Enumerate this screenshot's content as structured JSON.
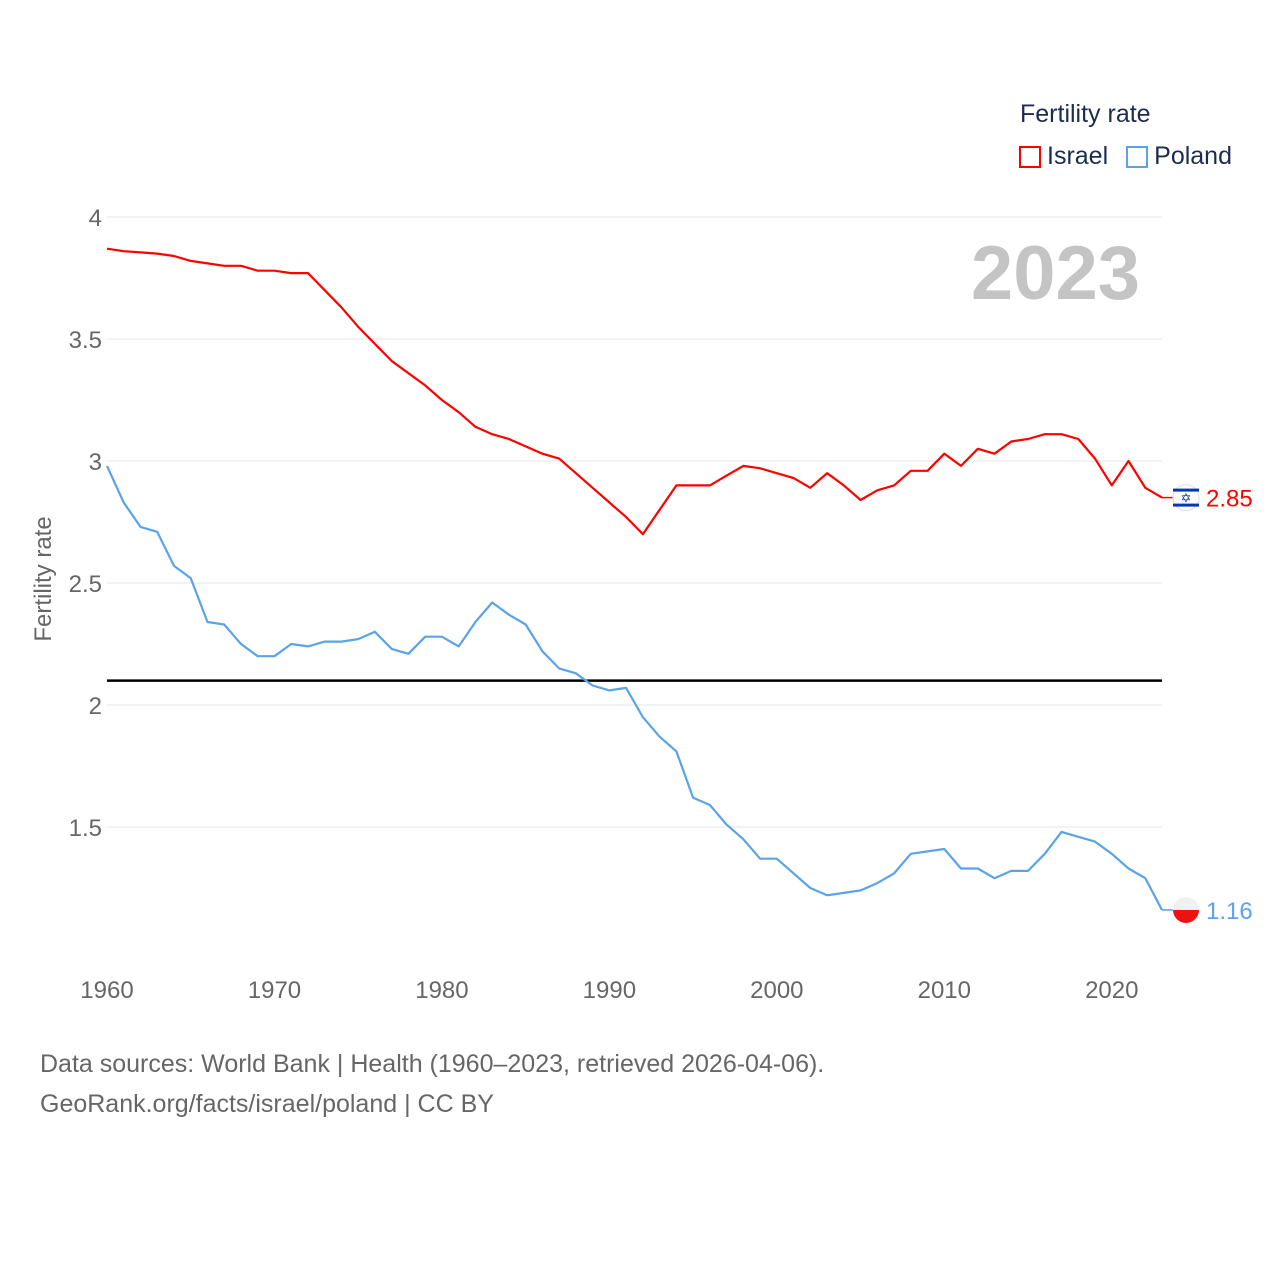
{
  "chart_data": {
    "type": "line",
    "title": "Fertility rate",
    "ylabel": "Fertility rate",
    "xlabel": "",
    "year_label": "2023",
    "xlim": [
      1960,
      2023
    ],
    "ylim": [
      1,
      4
    ],
    "x_ticks": [
      "1960",
      "1970",
      "1980",
      "1990",
      "2000",
      "2010",
      "2020"
    ],
    "y_ticks": [
      "1.5",
      "2",
      "2.5",
      "3",
      "3.5",
      "4"
    ],
    "grid": true,
    "legend_position": "top-right",
    "reference_line": 2.1,
    "x": [
      1960,
      1961,
      1962,
      1963,
      1964,
      1965,
      1966,
      1967,
      1968,
      1969,
      1970,
      1971,
      1972,
      1973,
      1974,
      1975,
      1976,
      1977,
      1978,
      1979,
      1980,
      1981,
      1982,
      1983,
      1984,
      1985,
      1986,
      1987,
      1988,
      1989,
      1990,
      1991,
      1992,
      1993,
      1994,
      1995,
      1996,
      1997,
      1998,
      1999,
      2000,
      2001,
      2002,
      2003,
      2004,
      2005,
      2006,
      2007,
      2008,
      2009,
      2010,
      2011,
      2012,
      2013,
      2014,
      2015,
      2016,
      2017,
      2018,
      2019,
      2020,
      2021,
      2022,
      2023
    ],
    "series": [
      {
        "name": "Israel",
        "color": "#ff0000",
        "end_label": "2.85",
        "values": [
          3.87,
          3.86,
          3.855,
          3.85,
          3.84,
          3.82,
          3.81,
          3.8,
          3.8,
          3.78,
          3.78,
          3.77,
          3.77,
          3.7,
          3.63,
          3.55,
          3.48,
          3.41,
          3.36,
          3.31,
          3.25,
          3.2,
          3.14,
          3.11,
          3.09,
          3.06,
          3.03,
          3.01,
          2.95,
          2.89,
          2.83,
          2.77,
          2.7,
          2.8,
          2.9,
          2.9,
          2.9,
          2.94,
          2.98,
          2.97,
          2.95,
          2.93,
          2.89,
          2.95,
          2.9,
          2.84,
          2.88,
          2.9,
          2.96,
          2.96,
          3.03,
          2.98,
          3.05,
          3.03,
          3.08,
          3.09,
          3.11,
          3.11,
          3.09,
          3.01,
          2.9,
          3.0,
          2.89,
          2.85
        ]
      },
      {
        "name": "Poland",
        "color": "#5ba3e8",
        "end_label": "1.16",
        "values": [
          2.98,
          2.83,
          2.73,
          2.71,
          2.57,
          2.52,
          2.34,
          2.33,
          2.25,
          2.2,
          2.2,
          2.25,
          2.24,
          2.26,
          2.26,
          2.27,
          2.3,
          2.23,
          2.21,
          2.28,
          2.28,
          2.24,
          2.34,
          2.42,
          2.37,
          2.33,
          2.22,
          2.15,
          2.13,
          2.08,
          2.06,
          2.07,
          1.95,
          1.87,
          1.81,
          1.62,
          1.59,
          1.51,
          1.45,
          1.37,
          1.37,
          1.31,
          1.25,
          1.22,
          1.23,
          1.24,
          1.27,
          1.31,
          1.39,
          1.4,
          1.41,
          1.33,
          1.33,
          1.29,
          1.32,
          1.32,
          1.39,
          1.48,
          1.46,
          1.44,
          1.39,
          1.33,
          1.29,
          1.16
        ]
      }
    ]
  },
  "footer": {
    "line1": "Data sources: World Bank | Health (1960–2023, retrieved 2026-04-06).",
    "line2": "GeoRank.org/facts/israel/poland | CC BY"
  }
}
